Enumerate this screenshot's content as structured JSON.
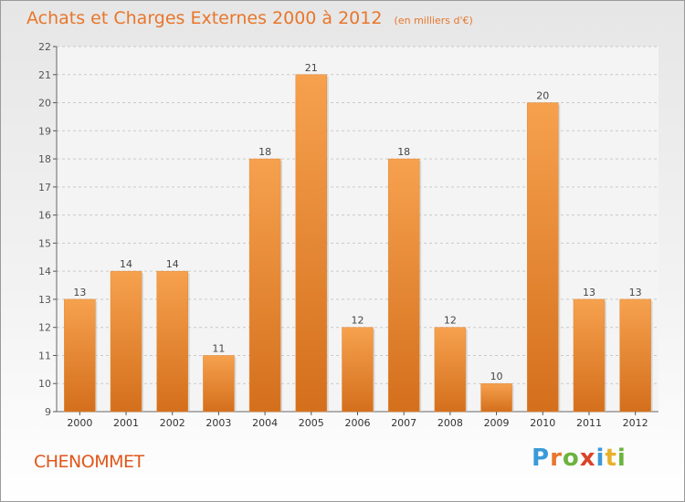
{
  "title": "Achats et Charges Externes 2000 à 2012",
  "unit_note": "(en milliers d'€)",
  "commune": "CHENOMMET",
  "logo": {
    "text": "Proxiti",
    "letter_colors": [
      "#3a9ad9",
      "#e8762b",
      "#6cb33f",
      "#d9442b",
      "#3a9ad9",
      "#e8b12b",
      "#6cb33f"
    ]
  },
  "colors": {
    "bar_light": "#f6a14e",
    "bar_dark": "#d46f1c",
    "title": "#e8762b",
    "commune": "#e0561a"
  },
  "chart_data": {
    "type": "bar",
    "categories": [
      "2000",
      "2001",
      "2002",
      "2003",
      "2004",
      "2005",
      "2006",
      "2007",
      "2008",
      "2009",
      "2010",
      "2011",
      "2012"
    ],
    "values": [
      13,
      14,
      14,
      11,
      18,
      21,
      12,
      18,
      12,
      10,
      20,
      13,
      13
    ],
    "title": "Achats et Charges Externes 2000 à 2012",
    "xlabel": "",
    "ylabel": "",
    "ylim": [
      9,
      22
    ],
    "yticks": [
      9,
      10,
      11,
      12,
      13,
      14,
      15,
      16,
      17,
      18,
      19,
      20,
      21,
      22
    ],
    "grid": true,
    "legend": "none"
  }
}
